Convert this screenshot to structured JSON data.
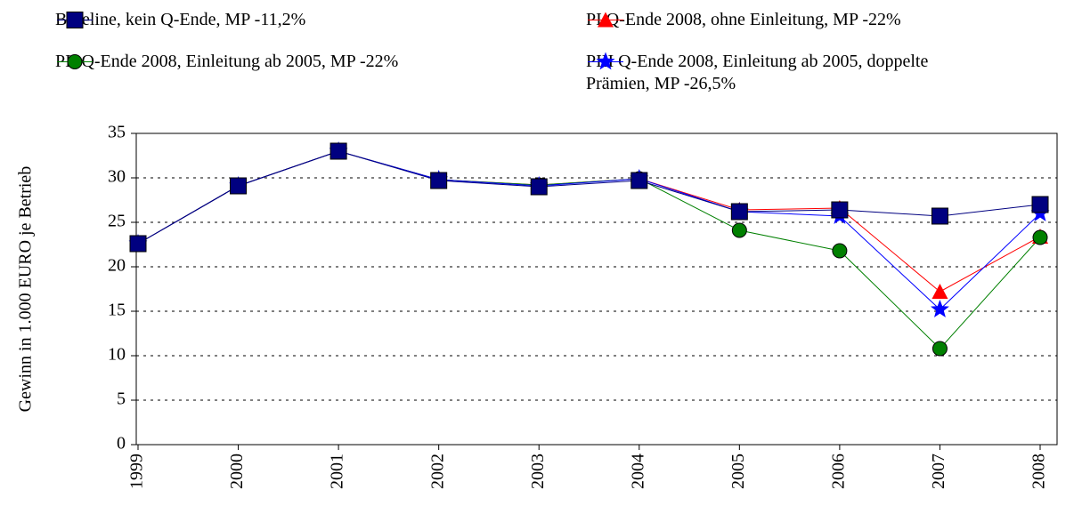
{
  "chart_data": {
    "type": "line",
    "categories": [
      "1999",
      "2000",
      "2001",
      "2002",
      "2003",
      "2004",
      "2005",
      "2006",
      "2007",
      "2008"
    ],
    "y_label": "Gewinn in 1.000 EURO je Betrieb",
    "ylim": [
      0,
      35
    ],
    "yticks": [
      0,
      5,
      10,
      15,
      20,
      25,
      30,
      35
    ],
    "grid": true,
    "series": [
      {
        "name": "Baseline, kein Q-Ende, MP -11,2%",
        "color": "#000080",
        "marker": "square",
        "values": [
          22.6,
          29.1,
          33,
          29.7,
          29,
          29.7,
          26.2,
          26.4,
          25.7,
          27
        ]
      },
      {
        "name": "PI Q-Ende 2008, ohne Einleitung, MP -22%",
        "color": "#ff0000",
        "marker": "triangle",
        "values": [
          22.6,
          29.1,
          33,
          29.8,
          29.2,
          29.9,
          26.4,
          26.6,
          17.2,
          23.4
        ]
      },
      {
        "name": "PII Q-Ende 2008, Einleitung ab 2005, MP -22%",
        "color": "#008000",
        "marker": "circle",
        "values": [
          22.6,
          29.1,
          33,
          29.8,
          29.2,
          29.9,
          24.1,
          21.8,
          10.8,
          23.3
        ]
      },
      {
        "name": "PIII Q-Ende 2008, Einleitung ab 2005, doppelte Prämien, MP -26,5%",
        "color": "#0000ff",
        "marker": "star",
        "values": [
          22.6,
          29.1,
          33,
          29.8,
          29.1,
          29.9,
          26.2,
          25.7,
          15.2,
          26
        ]
      }
    ]
  }
}
